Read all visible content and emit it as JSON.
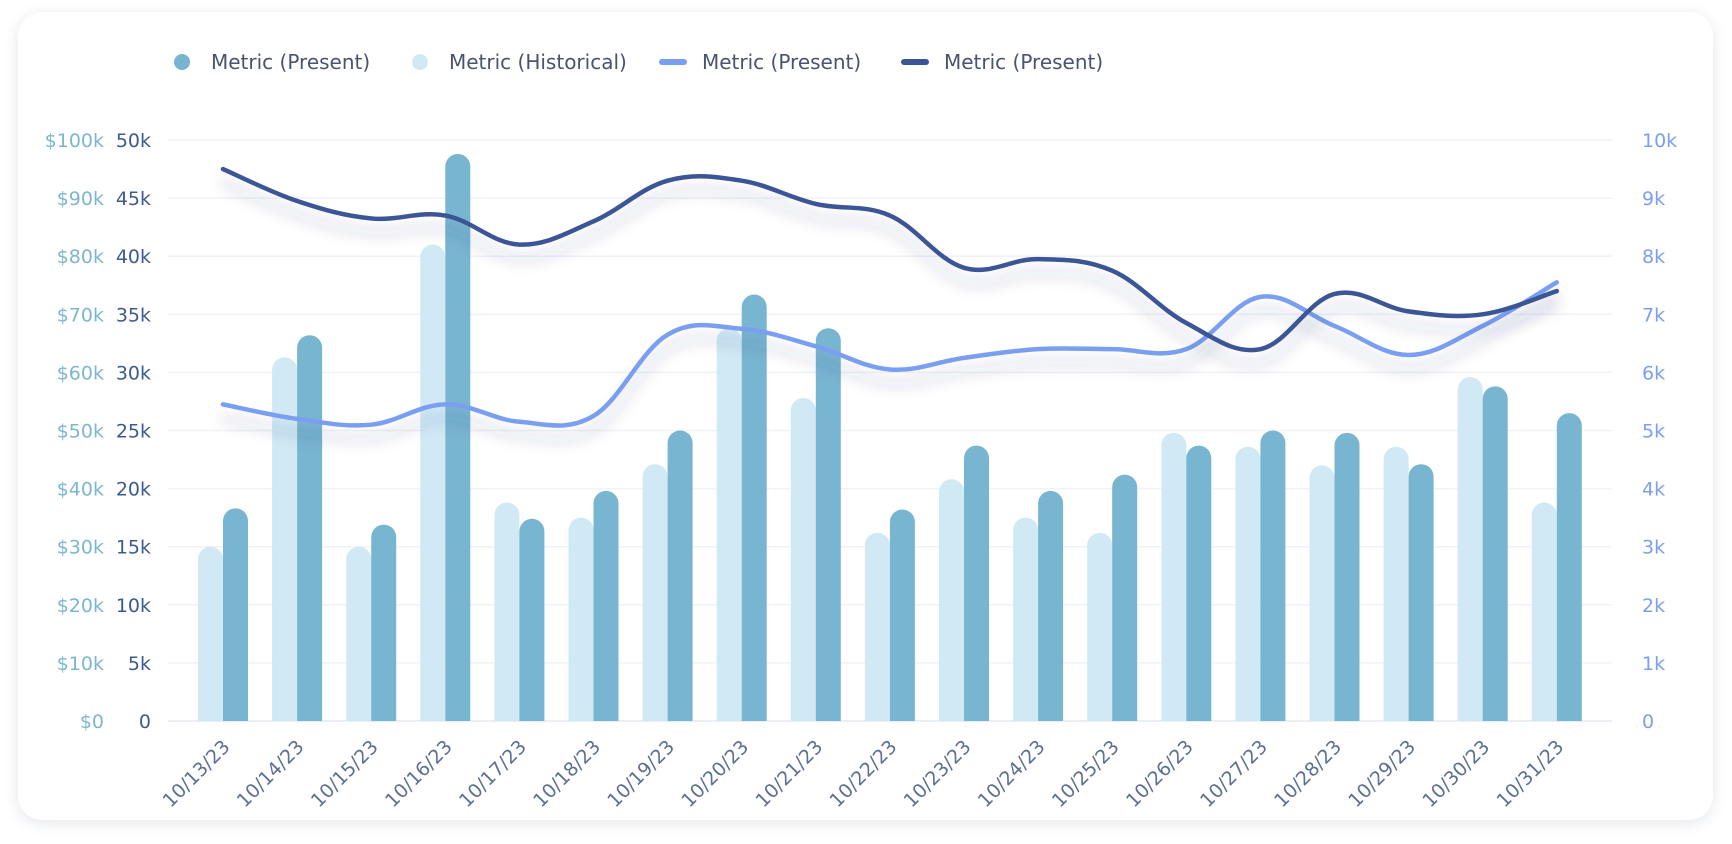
{
  "chart_data": {
    "type": "bar",
    "categories": [
      "10/13/23",
      "10/14/23",
      "10/15/23",
      "10/16/23",
      "10/17/23",
      "10/18/23",
      "10/19/23",
      "10/20/23",
      "10/21/23",
      "10/22/23",
      "10/23/23",
      "10/24/23",
      "10/25/23",
      "10/26/23",
      "10/27/23",
      "10/28/23",
      "10/29/23",
      "10/30/23",
      "10/31/23"
    ],
    "legend": [
      {
        "label": "Metric (Present)",
        "marker": "dot",
        "color": "#78b5d0"
      },
      {
        "label": "Metric (Historical)",
        "marker": "dot",
        "color": "#d0e9f5"
      },
      {
        "label": "Metric (Present)",
        "marker": "line",
        "color": "#7a9ff0"
      },
      {
        "label": "Metric (Present)",
        "marker": "line",
        "color": "#3a5596"
      }
    ],
    "series": [
      {
        "name": "Metric (Historical)",
        "type": "bar",
        "axis": "left",
        "color": "#d0e9f5",
        "values": [
          15000,
          31300,
          15000,
          41000,
          18800,
          17500,
          22100,
          33800,
          27800,
          16200,
          20800,
          17500,
          16200,
          24800,
          23600,
          22000,
          23600,
          29600,
          18800
        ]
      },
      {
        "name": "Metric (Present)",
        "type": "bar",
        "axis": "left",
        "color": "#78b5d0",
        "values": [
          18300,
          33200,
          16900,
          48800,
          17400,
          19800,
          25000,
          36700,
          33800,
          18200,
          23700,
          19800,
          21200,
          23700,
          25000,
          24800,
          22100,
          28800,
          26500
        ]
      },
      {
        "name": "Metric (Present)",
        "type": "line",
        "axis": "right",
        "color": "#7a9ff0",
        "values": [
          5450,
          5200,
          5100,
          5450,
          5150,
          5250,
          6650,
          6750,
          6450,
          6050,
          6250,
          6400,
          6400,
          6400,
          7300,
          6800,
          6300,
          6800,
          7550
        ]
      },
      {
        "name": "Metric (Present)",
        "type": "line",
        "axis": "right",
        "color": "#3a5596",
        "values": [
          9500,
          8950,
          8650,
          8700,
          8200,
          8600,
          9300,
          9300,
          8900,
          8700,
          7800,
          7950,
          7750,
          6850,
          6400,
          7350,
          7050,
          7000,
          7400
        ]
      }
    ],
    "y_axes": {
      "usd": {
        "ticks": [
          "$0",
          "$10k",
          "$20k",
          "$30k",
          "$40k",
          "$50k",
          "$60k",
          "$70k",
          "$80k",
          "$90k",
          "$100k"
        ],
        "range": [
          0,
          100000
        ]
      },
      "left": {
        "ticks": [
          "0",
          "5k",
          "10k",
          "15k",
          "20k",
          "25k",
          "30k",
          "35k",
          "40k",
          "45k",
          "50k"
        ],
        "range": [
          0,
          50000
        ]
      },
      "right": {
        "ticks": [
          "0",
          "1k",
          "2k",
          "3k",
          "4k",
          "5k",
          "6k",
          "7k",
          "8k",
          "9k",
          "10k"
        ],
        "range": [
          0,
          10000
        ]
      }
    },
    "grid": true,
    "legend_position": "top-left"
  }
}
